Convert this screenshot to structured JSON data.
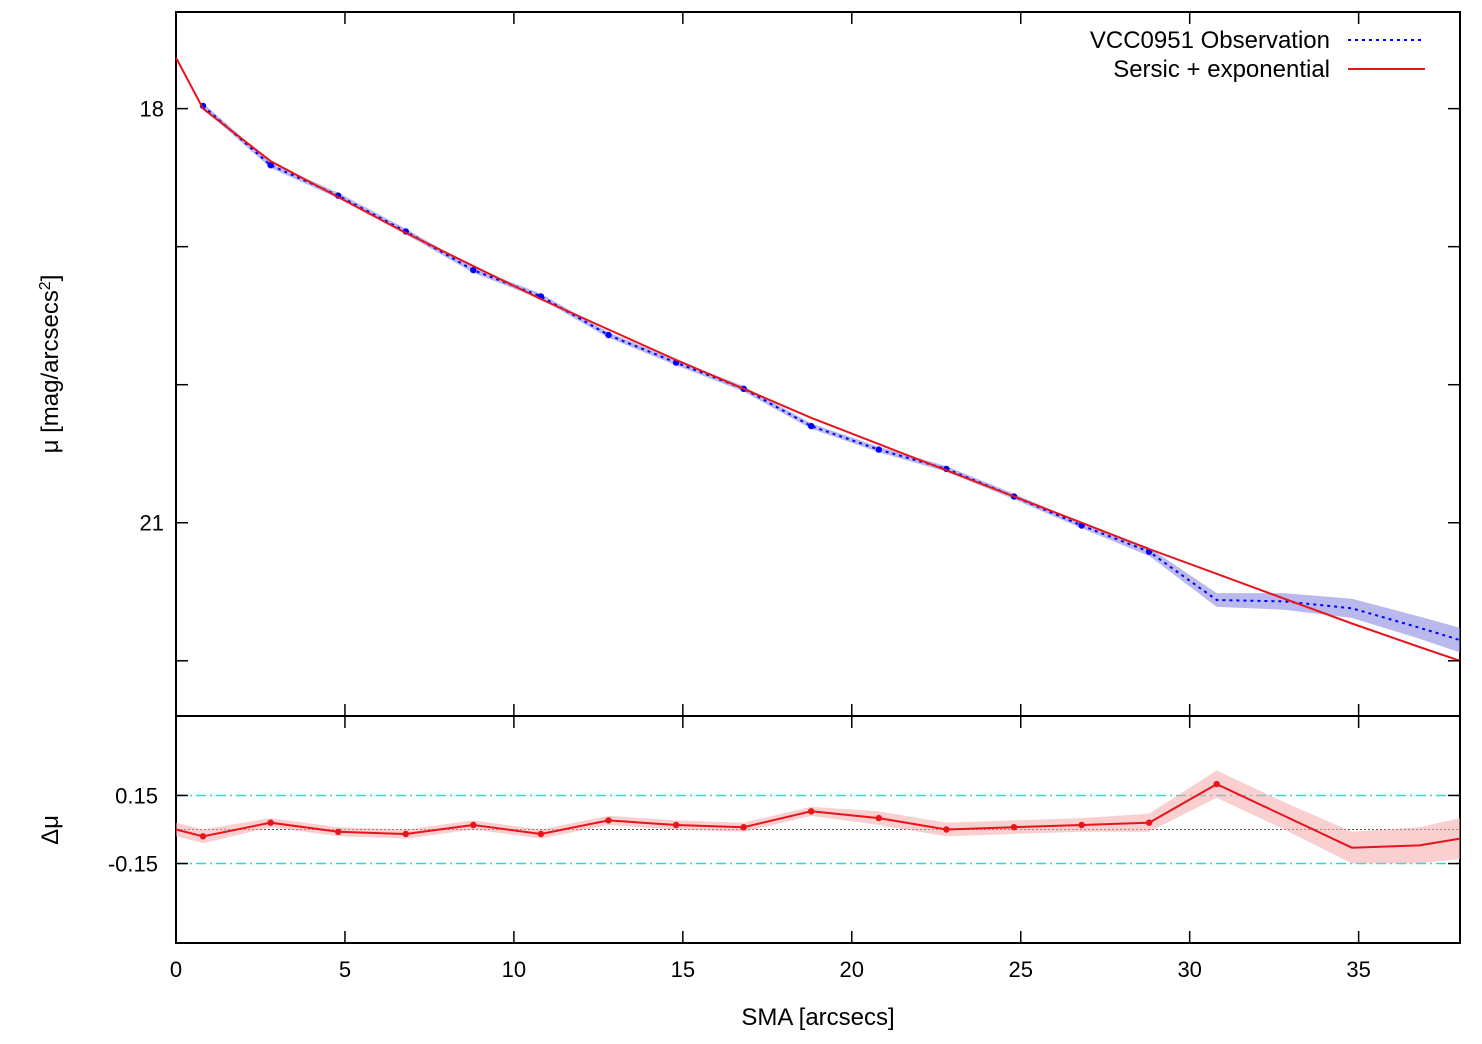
{
  "chart_data": [
    {
      "type": "line",
      "panel": "profile",
      "xlabel": "",
      "ylabel": "μ [mag/arcsecs",
      "ylabel_sup": "2",
      "ylabel_close": "]",
      "xlim": [
        0,
        38
      ],
      "ylim": [
        22.4,
        17.3
      ],
      "y_ticks": [
        18,
        19,
        20,
        21,
        22
      ],
      "y_tick_labels": [
        "18",
        "",
        "",
        "21",
        ""
      ],
      "legend_position": "top-right",
      "series": [
        {
          "name": "VCC0951 Observation",
          "style": "dotted",
          "color": "#0000ff",
          "band_color": "#8080e0",
          "x": [
            0.8,
            2.8,
            4.8,
            6.8,
            8.8,
            10.8,
            12.8,
            14.8,
            16.8,
            18.8,
            20.8,
            22.8,
            24.8,
            26.8,
            28.8,
            30.8,
            32.8,
            34.8,
            36.8,
            38.0
          ],
          "y": [
            17.98,
            18.41,
            18.63,
            18.89,
            19.17,
            19.36,
            19.64,
            19.84,
            20.03,
            20.3,
            20.47,
            20.61,
            20.81,
            21.02,
            21.21,
            21.56,
            21.57,
            21.62,
            21.76,
            21.85
          ],
          "band_err": [
            0.02,
            0.02,
            0.02,
            0.02,
            0.02,
            0.02,
            0.02,
            0.02,
            0.02,
            0.02,
            0.02,
            0.02,
            0.02,
            0.02,
            0.03,
            0.05,
            0.06,
            0.07,
            0.08,
            0.09
          ],
          "markers_until_index": 14
        },
        {
          "name": "Sersic + exponential",
          "style": "solid",
          "color": "#e8141c",
          "x": [
            0,
            0.8,
            2.8,
            4.8,
            6.8,
            8.8,
            10.8,
            12.8,
            14.8,
            16.8,
            18.8,
            20.8,
            22.8,
            24.8,
            26.8,
            28.8,
            30.8,
            32.8,
            34.8,
            36.8,
            38.0
          ],
          "y": [
            17.63,
            18.0,
            18.38,
            18.64,
            18.9,
            19.14,
            19.38,
            19.6,
            19.82,
            20.03,
            20.24,
            20.43,
            20.62,
            20.81,
            21.0,
            21.19,
            21.37,
            21.55,
            21.73,
            21.9,
            22.0
          ]
        }
      ]
    },
    {
      "type": "line",
      "panel": "residual",
      "xlabel": "SMA [arcsecs]",
      "ylabel": "Δμ",
      "xlim": [
        0,
        38
      ],
      "ylim": [
        -0.5,
        0.5
      ],
      "x_ticks": [
        0,
        5,
        10,
        15,
        20,
        25,
        30,
        35
      ],
      "x_tick_labels": [
        "0",
        "5",
        "10",
        "15",
        "20",
        "25",
        "30",
        "35"
      ],
      "y_ticks": [
        0.15,
        -0.15
      ],
      "y_tick_labels": [
        "0.15",
        "-0.15"
      ],
      "reference_lines": [
        0.15,
        -0.15
      ],
      "reference_color": "#33d4d4",
      "zero_line_color": "#555555",
      "series": [
        {
          "name": "",
          "color": "#e8141c",
          "band_color": "#f4a7a7",
          "x": [
            0,
            0.8,
            2.8,
            4.8,
            6.8,
            8.8,
            10.8,
            12.8,
            14.8,
            16.8,
            18.8,
            20.8,
            22.8,
            24.8,
            26.8,
            28.8,
            30.8,
            32.8,
            34.8,
            36.8,
            38.0
          ],
          "y": [
            0.0,
            -0.03,
            0.03,
            -0.01,
            -0.02,
            0.02,
            -0.02,
            0.04,
            0.02,
            0.01,
            0.08,
            0.05,
            0.0,
            0.01,
            0.02,
            0.03,
            0.2,
            0.06,
            -0.08,
            -0.07,
            -0.04
          ],
          "band_err": [
            0.03,
            0.03,
            0.02,
            0.02,
            0.02,
            0.02,
            0.02,
            0.02,
            0.02,
            0.02,
            0.02,
            0.03,
            0.03,
            0.03,
            0.03,
            0.04,
            0.06,
            0.06,
            0.07,
            0.08,
            0.09
          ],
          "markers_until_index": 16
        }
      ]
    }
  ]
}
